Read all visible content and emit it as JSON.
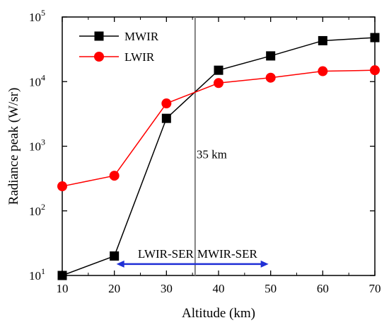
{
  "chart_data": {
    "type": "line",
    "x": [
      10,
      20,
      30,
      40,
      50,
      60,
      70
    ],
    "series": [
      {
        "name": "MWIR",
        "color": "#000000",
        "marker": "square",
        "values": [
          10,
          20,
          2700,
          15000,
          25000,
          43000,
          48000
        ]
      },
      {
        "name": "LWIR",
        "color": "#ff0000",
        "marker": "circle",
        "values": [
          240,
          350,
          4600,
          9500,
          11500,
          14500,
          15000
        ]
      }
    ],
    "xlabel": "Altitude (km)",
    "ylabel": "Radiance peak (W/sr)",
    "xlim": [
      10,
      70
    ],
    "ylim": [
      10,
      100000
    ],
    "yscale": "log",
    "x_ticks": [
      "10",
      "20",
      "30",
      "40",
      "50",
      "60",
      "70"
    ],
    "y_ticks": [
      {
        "base": "10",
        "exp": "1"
      },
      {
        "base": "10",
        "exp": "2"
      },
      {
        "base": "10",
        "exp": "3"
      },
      {
        "base": "10",
        "exp": "4"
      },
      {
        "base": "10",
        "exp": "5"
      }
    ],
    "grid": false,
    "legend_position": "top-left",
    "annotations": {
      "vline_x": 35.5,
      "vline_label": "35 km",
      "vline_color": "#808080",
      "arrow_from_x": 20,
      "arrow_to_x": 50,
      "arrow_at_y": 15,
      "arrow_color": "#1f2fd6",
      "left_region_label": "LWIR-SER",
      "right_region_label": "MWIR-SER"
    }
  }
}
